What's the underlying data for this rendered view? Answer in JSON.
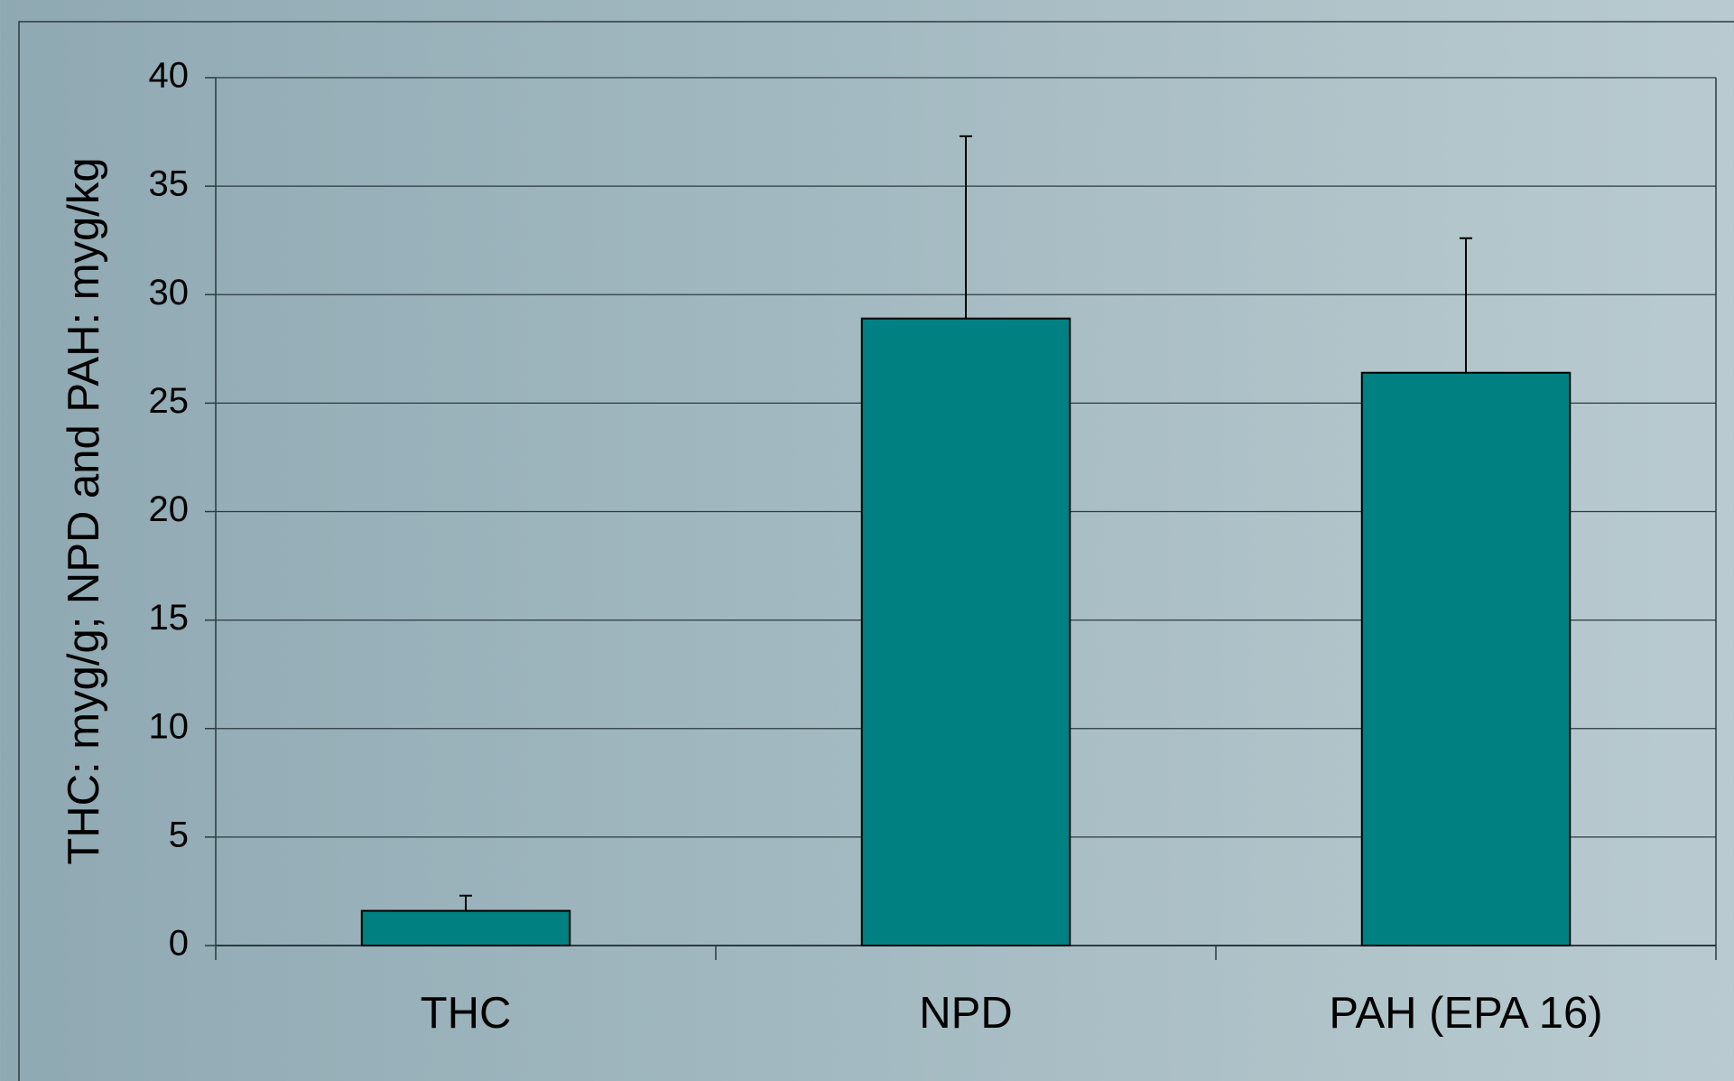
{
  "chart_data": {
    "type": "bar",
    "y_label": "THC: myg/g; NPD and PAH: myg/kg",
    "categories": [
      "THC",
      "NPD",
      "PAH (EPA 16)"
    ],
    "values": [
      1.6,
      28.9,
      26.4
    ],
    "errors": [
      0.7,
      8.4,
      6.2
    ],
    "color": "#008080",
    "ylim": [
      0,
      40
    ],
    "yticks": [
      0,
      5,
      10,
      15,
      20,
      25,
      30,
      35,
      40
    ],
    "grid": true
  }
}
